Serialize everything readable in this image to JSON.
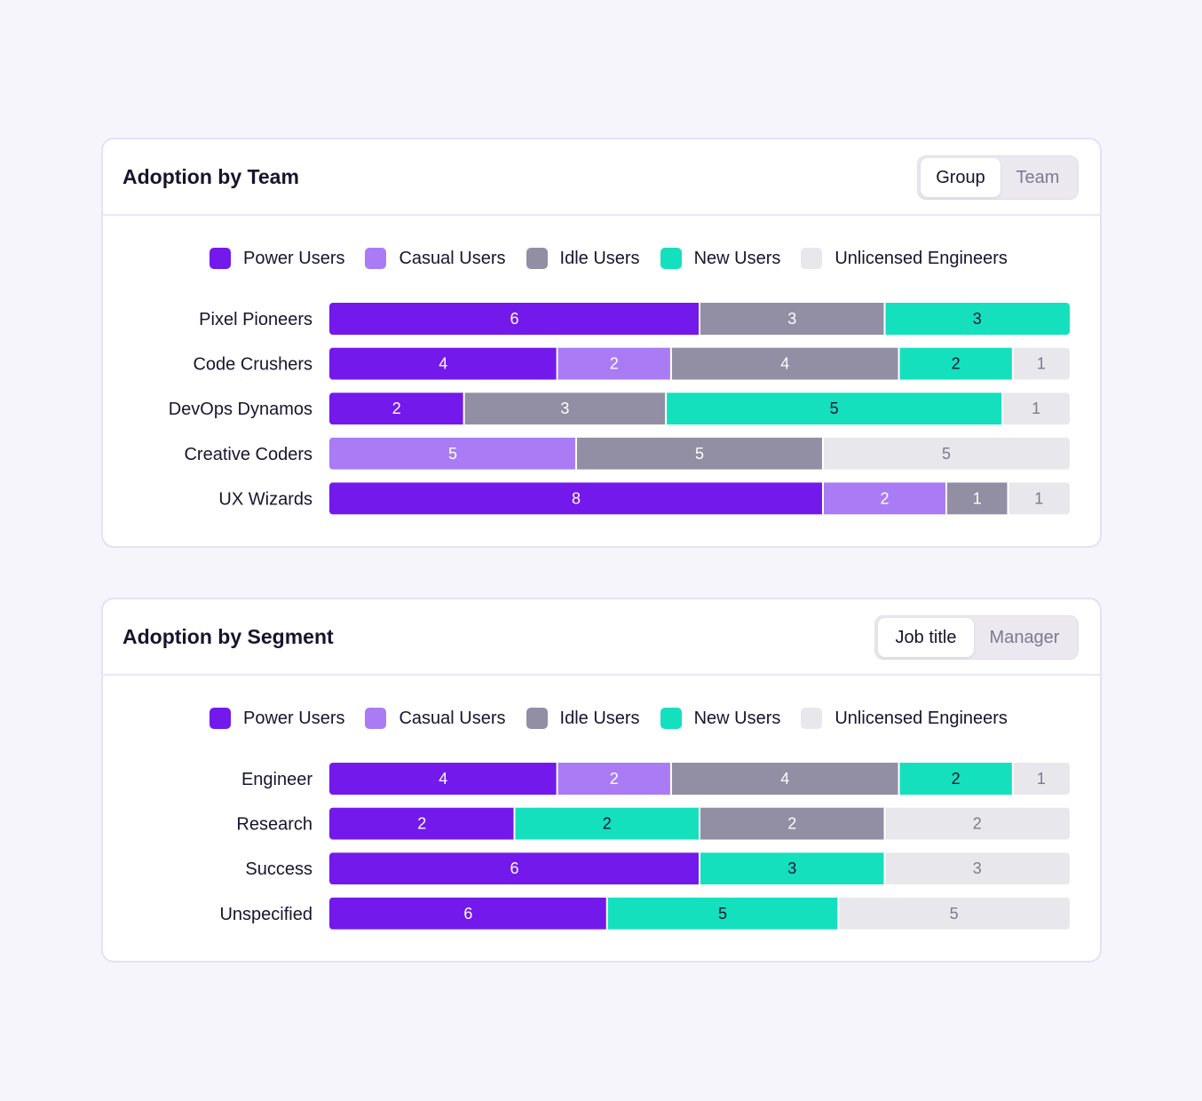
{
  "colors": {
    "power": "#7419ec",
    "casual": "#a97cf5",
    "idle": "#928ea4",
    "new": "#14e0be",
    "unlicensed": "#e8e7ec"
  },
  "legend": [
    {
      "key": "power",
      "label": "Power Users"
    },
    {
      "key": "casual",
      "label": "Casual Users"
    },
    {
      "key": "idle",
      "label": "Idle Users"
    },
    {
      "key": "new",
      "label": "New Users"
    },
    {
      "key": "unlicensed",
      "label": "Unlicensed Engineers"
    }
  ],
  "team_card": {
    "title": "Adoption by Team",
    "toggle": {
      "active": "Group",
      "inactive": "Team"
    }
  },
  "segment_card": {
    "title": "Adoption by Segment",
    "toggle": {
      "active": "Job title",
      "inactive": "Manager"
    }
  },
  "chart_data": [
    {
      "type": "bar",
      "stacked": true,
      "orientation": "horizontal",
      "title": "Adoption by Team",
      "categories": [
        "Pixel Pioneers",
        "Code Crushers",
        "DevOps Dynamos",
        "Creative Coders",
        "UX Wizards"
      ],
      "rows": [
        [
          {
            "key": "power",
            "value": 6
          },
          {
            "key": "idle",
            "value": 3
          },
          {
            "key": "new",
            "value": 3
          }
        ],
        [
          {
            "key": "power",
            "value": 4
          },
          {
            "key": "casual",
            "value": 2
          },
          {
            "key": "idle",
            "value": 4
          },
          {
            "key": "new",
            "value": 2
          },
          {
            "key": "unlicensed",
            "value": 1
          }
        ],
        [
          {
            "key": "power",
            "value": 2
          },
          {
            "key": "idle",
            "value": 3
          },
          {
            "key": "new",
            "value": 5
          },
          {
            "key": "unlicensed",
            "value": 1
          }
        ],
        [
          {
            "key": "casual",
            "value": 5
          },
          {
            "key": "idle",
            "value": 5
          },
          {
            "key": "unlicensed",
            "value": 5
          }
        ],
        [
          {
            "key": "power",
            "value": 8
          },
          {
            "key": "casual",
            "value": 2
          },
          {
            "key": "idle",
            "value": 1
          },
          {
            "key": "unlicensed",
            "value": 1
          }
        ]
      ],
      "normalized": true
    },
    {
      "type": "bar",
      "stacked": true,
      "orientation": "horizontal",
      "title": "Adoption by Segment",
      "categories": [
        "Engineer",
        "Research",
        "Success",
        "Unspecified"
      ],
      "rows": [
        [
          {
            "key": "power",
            "value": 4
          },
          {
            "key": "casual",
            "value": 2
          },
          {
            "key": "idle",
            "value": 4
          },
          {
            "key": "new",
            "value": 2
          },
          {
            "key": "unlicensed",
            "value": 1
          }
        ],
        [
          {
            "key": "power",
            "value": 2
          },
          {
            "key": "new",
            "value": 2
          },
          {
            "key": "idle",
            "value": 2
          },
          {
            "key": "unlicensed",
            "value": 2
          }
        ],
        [
          {
            "key": "power",
            "value": 6
          },
          {
            "key": "new",
            "value": 3
          },
          {
            "key": "unlicensed",
            "value": 3
          }
        ],
        [
          {
            "key": "power",
            "value": 6
          },
          {
            "key": "new",
            "value": 5
          },
          {
            "key": "unlicensed",
            "value": 5
          }
        ]
      ],
      "normalized": true
    }
  ]
}
